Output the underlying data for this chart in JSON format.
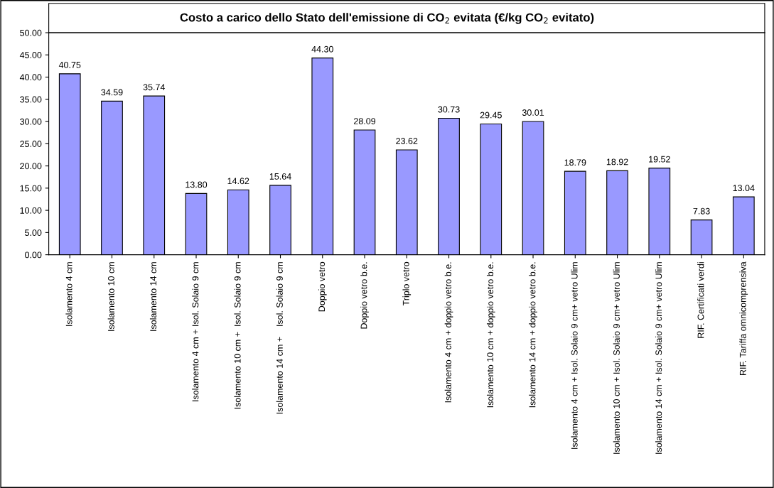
{
  "chart_data": {
    "type": "bar",
    "title": "Costo a carico dello Stato dell'emissione di CO$_{2}$ evitata (€/kg CO$_{2}$ evitato)",
    "categories": [
      "Isolamento 4 cm",
      "Isolamento 10 cm",
      "Isolamento 14 cm",
      "Isolamento 4 cm + Isol. Solaio 9 cm",
      "Isolamento 10 cm +  Isol. Solaio 9 cm",
      "Isolamento 14 cm +    Isol. Solaio 9 cm",
      "Doppio vetro",
      "Doppio vetro b.e.",
      "Triplo vetro",
      "Isolamento 4 cm + doppio vetro b.e.",
      "Isolamento 10 cm + doppio vetro b.e.",
      "Isolamento 14 cm + doppio vetro b.e.",
      "Isolamento 4 cm + Isol. Solaio 9 cm+ vetro Ulim",
      "Isolamento 10 cm + Isol. Solaio 9 cm+ vetro Ulim",
      "Isolamento 14 cm + Isol. Solaio 9 cm+ vetro Ulim",
      "RIF. Certificati verdi",
      "RIF. Tariffa omnicomprensiva"
    ],
    "values": [
      40.75,
      34.59,
      35.74,
      13.8,
      14.62,
      15.64,
      44.3,
      28.09,
      23.62,
      30.73,
      29.45,
      30.01,
      18.79,
      18.92,
      19.52,
      7.83,
      13.04
    ],
    "value_labels": [
      "40.75",
      "34.59",
      "35.74",
      "13.80",
      "14.62",
      "15.64",
      "44.30",
      "28.09",
      "23.62",
      "30.73",
      "29.45",
      "30.01",
      "18.79",
      "18.92",
      "19.52",
      "7.83",
      "13.04"
    ],
    "color": "#9999ff",
    "ylim": [
      0,
      50
    ],
    "yticks": [
      {
        "value": 0,
        "label": "0.00"
      },
      {
        "value": 5,
        "label": "5.00"
      },
      {
        "value": 10,
        "label": "10.00"
      },
      {
        "value": 15,
        "label": "15.00"
      },
      {
        "value": 20,
        "label": "20.00"
      },
      {
        "value": 25,
        "label": "25.00"
      },
      {
        "value": 30,
        "label": "30.00"
      },
      {
        "value": 35,
        "label": "35.00"
      },
      {
        "value": 40,
        "label": "40.00"
      },
      {
        "value": 45,
        "label": "45.00"
      },
      {
        "value": 50,
        "label": "50.00"
      }
    ]
  }
}
